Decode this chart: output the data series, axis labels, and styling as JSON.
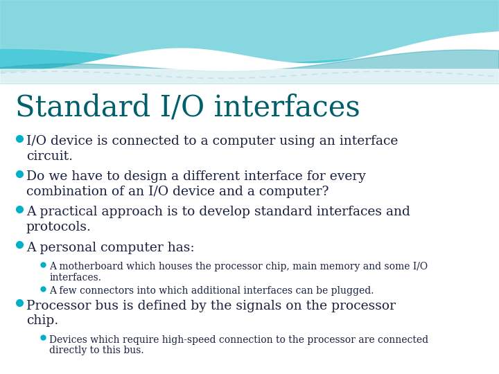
{
  "title": "Standard I/O interfaces",
  "title_color": "#005f6b",
  "title_fontsize": 30,
  "slide_bg": "#ffffff",
  "bullet_color": "#00b0c8",
  "text_color": "#1a2040",
  "sub_text_color": "#1a2040",
  "main_bullet_fontsize": 13.5,
  "sub_bullet_fontsize": 10.0,
  "wave_teal": "#4ecad8",
  "wave_light": "#a0dde6",
  "wave_dark": "#2fa8b8",
  "bullets": [
    {
      "level": 1,
      "text": "I/O device is connected to a computer using an interface\ncircuit."
    },
    {
      "level": 1,
      "text": "Do we have to design a different interface for every\ncombination of an I/O device and a computer?"
    },
    {
      "level": 1,
      "text": "A practical approach is to develop standard interfaces and\nprotocols."
    },
    {
      "level": 1,
      "text": "A personal computer has:"
    },
    {
      "level": 2,
      "text": "A motherboard which houses the processor chip, main memory and some I/O\ninterfaces."
    },
    {
      "level": 2,
      "text": "A few connectors into which additional interfaces can be plugged."
    },
    {
      "level": 1,
      "text": "Processor bus is defined by the signals on the processor\nchip."
    },
    {
      "level": 2,
      "text": "Devices which require high-speed connection to the processor are connected\ndirectly to this bus."
    }
  ]
}
